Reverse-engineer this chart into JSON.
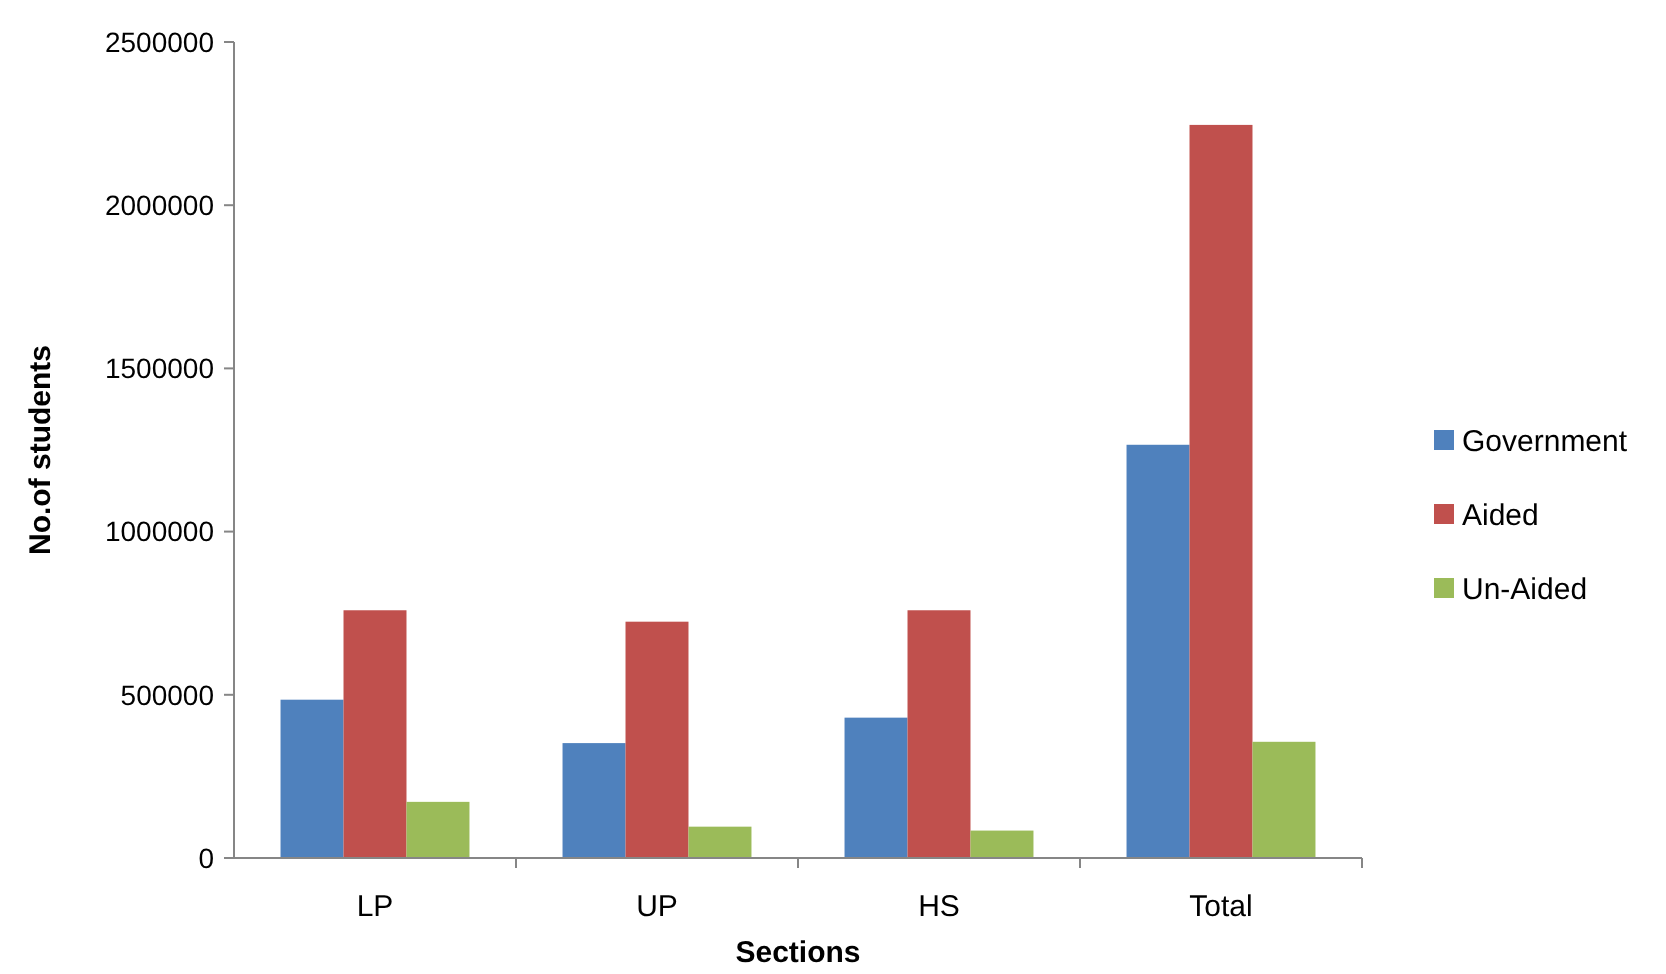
{
  "chart_data": {
    "type": "bar",
    "xlabel": "Sections",
    "ylabel": "No.of students",
    "categories": [
      "LP",
      "UP",
      "HS",
      "Total"
    ],
    "series": [
      {
        "name": "Government",
        "color": "#4f81bd",
        "values": [
          485000,
          352000,
          430000,
          1266000
        ]
      },
      {
        "name": "Aided",
        "color": "#c0504d",
        "values": [
          759000,
          724000,
          759000,
          2246000
        ]
      },
      {
        "name": "Un-Aided",
        "color": "#9bbb59",
        "values": [
          172000,
          96000,
          84000,
          356000
        ]
      }
    ],
    "ylim": [
      0,
      2500000
    ],
    "yticks": [
      0,
      500000,
      1000000,
      1500000,
      2000000,
      2500000
    ],
    "grid": false,
    "legend": "right"
  }
}
